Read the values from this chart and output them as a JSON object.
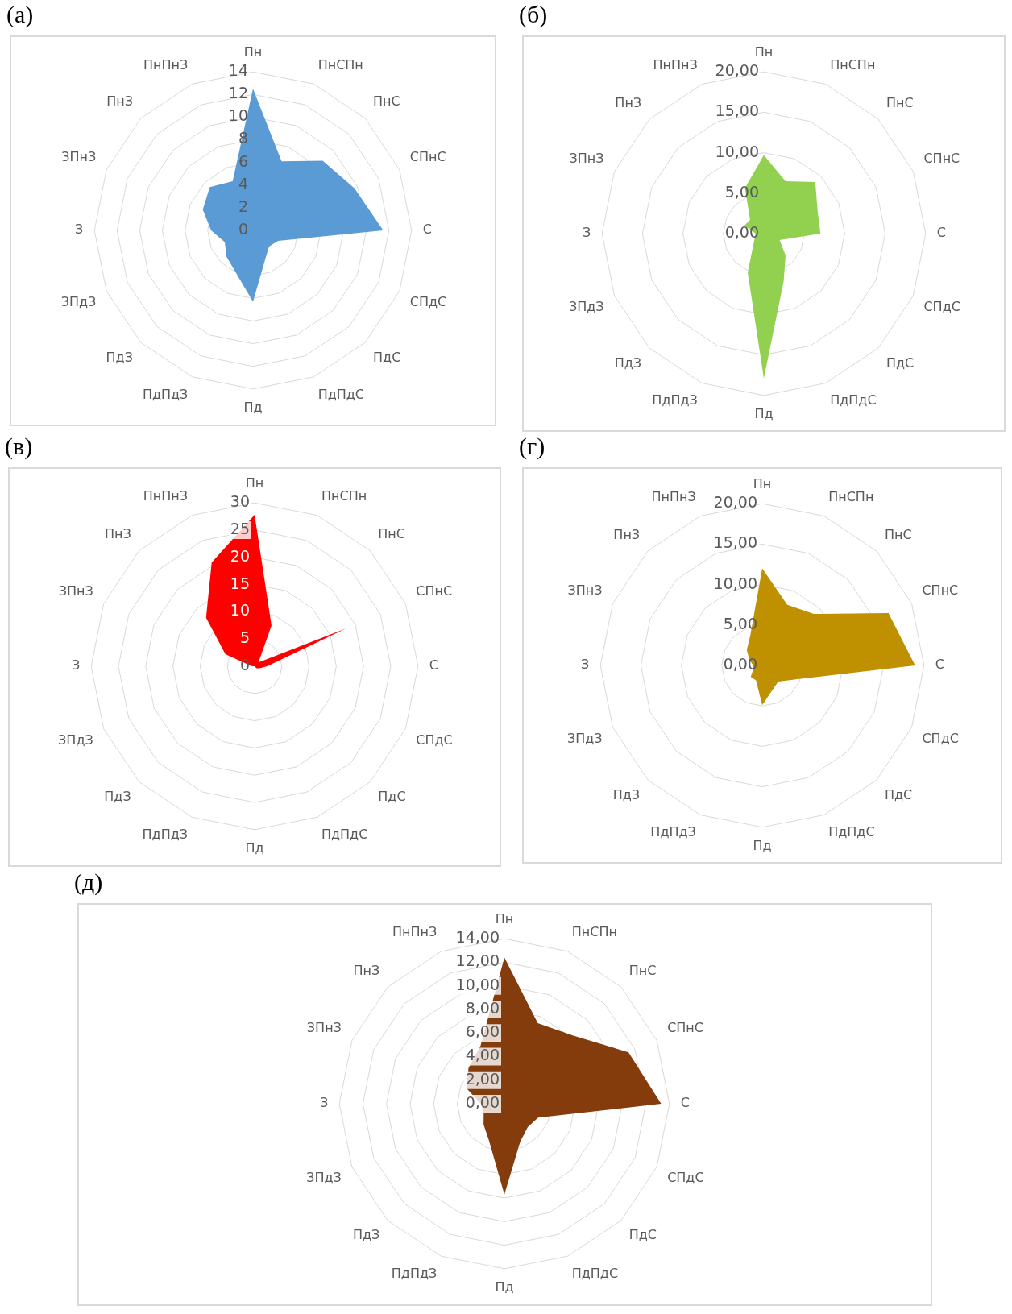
{
  "chart_data": [
    {
      "type": "radar",
      "title": "(а)",
      "categories": [
        "Пн",
        "ПнСПн",
        "ПнС",
        "СПнС",
        "С",
        "СПдС",
        "ПдС",
        "ПдПдС",
        "Пд",
        "ПдПдЗ",
        "ПдЗ",
        "ЗПдЗ",
        "З",
        "ЗПнЗ",
        "ПнЗ",
        "ПнПнЗ"
      ],
      "series": [
        {
          "color": "#5b9bd5",
          "values": [
            12.5,
            6.6,
            8.7,
            9.7,
            11.5,
            2.4,
            2.0,
            2.8,
            6.3,
            4.0,
            3.3,
            2.7,
            3.7,
            4.8,
            5.4,
            4.7
          ]
        }
      ],
      "ylim": [
        0,
        14
      ],
      "yticks": [
        0,
        2,
        4,
        6,
        8,
        10,
        12,
        14
      ],
      "grid": true,
      "marker": "none"
    },
    {
      "type": "radar",
      "title": "(б)",
      "categories": [
        "Пн",
        "ПнСПн",
        "ПнС",
        "СПнС",
        "С",
        "СПдС",
        "ПдС",
        "ПдПдС",
        "Пд",
        "ПдПдЗ",
        "ПдЗ",
        "ЗПдЗ",
        "З",
        "ЗПнЗ",
        "ПнЗ",
        "ПнПнЗ"
      ],
      "series": [
        {
          "color": "#92d050",
          "values": [
            9.7,
            7.0,
            9.0,
            7.2,
            7.0,
            2.1,
            3.8,
            6.4,
            17.9,
            5.2,
            1.8,
            1.2,
            1.0,
            2.6,
            2.4,
            6.1
          ]
        }
      ],
      "ylim": [
        0,
        20
      ],
      "yticks": [
        {
          "value": 0,
          "label": "0,00"
        },
        {
          "value": 5,
          "label": "5,00"
        },
        {
          "value": 10,
          "label": "10,00"
        },
        {
          "value": 15,
          "label": "15,00"
        },
        {
          "value": 20,
          "label": "20,00"
        }
      ],
      "grid": true,
      "marker": "none"
    },
    {
      "type": "radar",
      "title": "(в)",
      "categories": [
        "Пн",
        "ПнСПн",
        "ПнС",
        "СПнС",
        "С",
        "СПдС",
        "ПдС",
        "ПдПдС",
        "Пд",
        "ПдПдЗ",
        "ПдЗ",
        "ЗПдЗ",
        "З",
        "ЗПнЗ",
        "ПнЗ",
        "ПнПнЗ"
      ],
      "series": [
        {
          "color": "#ff0000",
          "values": [
            27.8,
            8.1,
            1.0,
            18.2,
            2.3,
            1.0,
            0.5,
            0,
            0,
            0,
            0,
            0,
            0.5,
            5.8,
            12.6,
            20.6
          ]
        }
      ],
      "ylim": [
        0,
        30
      ],
      "yticks": [
        0,
        5,
        10,
        15,
        20,
        25,
        30
      ],
      "grid": true,
      "marker": "none"
    },
    {
      "type": "radar",
      "title": "(г)",
      "categories": [
        "Пн",
        "ПнСПн",
        "ПнС",
        "СПнС",
        "С",
        "СПдС",
        "ПдС",
        "ПдПдС",
        "Пд",
        "ПдПдЗ",
        "ПдЗ",
        "ЗПдЗ",
        "З",
        "ЗПнЗ",
        "ПнЗ",
        "ПнПнЗ"
      ],
      "series": [
        {
          "color": "#bf9000",
          "values": [
            12.0,
            8.1,
            9.0,
            16.9,
            18.9,
            4.5,
            2.8,
            3.3,
            4.9,
            2.0,
            2.0,
            1.2,
            1.1,
            1.7,
            2.7,
            3.9
          ]
        }
      ],
      "ylim": [
        0,
        20
      ],
      "yticks": [
        {
          "value": 0,
          "label": "0,00"
        },
        {
          "value": 5,
          "label": "5,00"
        },
        {
          "value": 10,
          "label": "10,00"
        },
        {
          "value": 15,
          "label": "15,00"
        },
        {
          "value": 20,
          "label": "20,00"
        }
      ],
      "grid": true,
      "marker": "none"
    },
    {
      "type": "radar",
      "title": "(д)",
      "categories": [
        "Пн",
        "ПнСПн",
        "ПнС",
        "СПнС",
        "С",
        "СПдС",
        "ПдС",
        "ПдПдС",
        "Пд",
        "ПдПдЗ",
        "ПдЗ",
        "ЗПдЗ",
        "З",
        "ЗПнЗ",
        "ПнЗ",
        "ПнПнЗ"
      ],
      "series": [
        {
          "color": "#843c0c",
          "values": [
            12.4,
            7.4,
            8.2,
            11.4,
            13.3,
            3.1,
            2.8,
            3.5,
            7.7,
            3.4,
            2.5,
            1.9,
            2.0,
            3.5,
            4.3,
            5.3
          ]
        }
      ],
      "ylim": [
        0,
        14
      ],
      "yticks": [
        {
          "value": 0,
          "label": "0,00"
        },
        {
          "value": 2,
          "label": "2,00"
        },
        {
          "value": 4,
          "label": "4,00"
        },
        {
          "value": 6,
          "label": "6,00"
        },
        {
          "value": 8,
          "label": "8,00"
        },
        {
          "value": 10,
          "label": "10,00"
        },
        {
          "value": 12,
          "label": "12,00"
        },
        {
          "value": 14,
          "label": "14,00"
        }
      ],
      "grid": true,
      "marker": "none"
    }
  ]
}
